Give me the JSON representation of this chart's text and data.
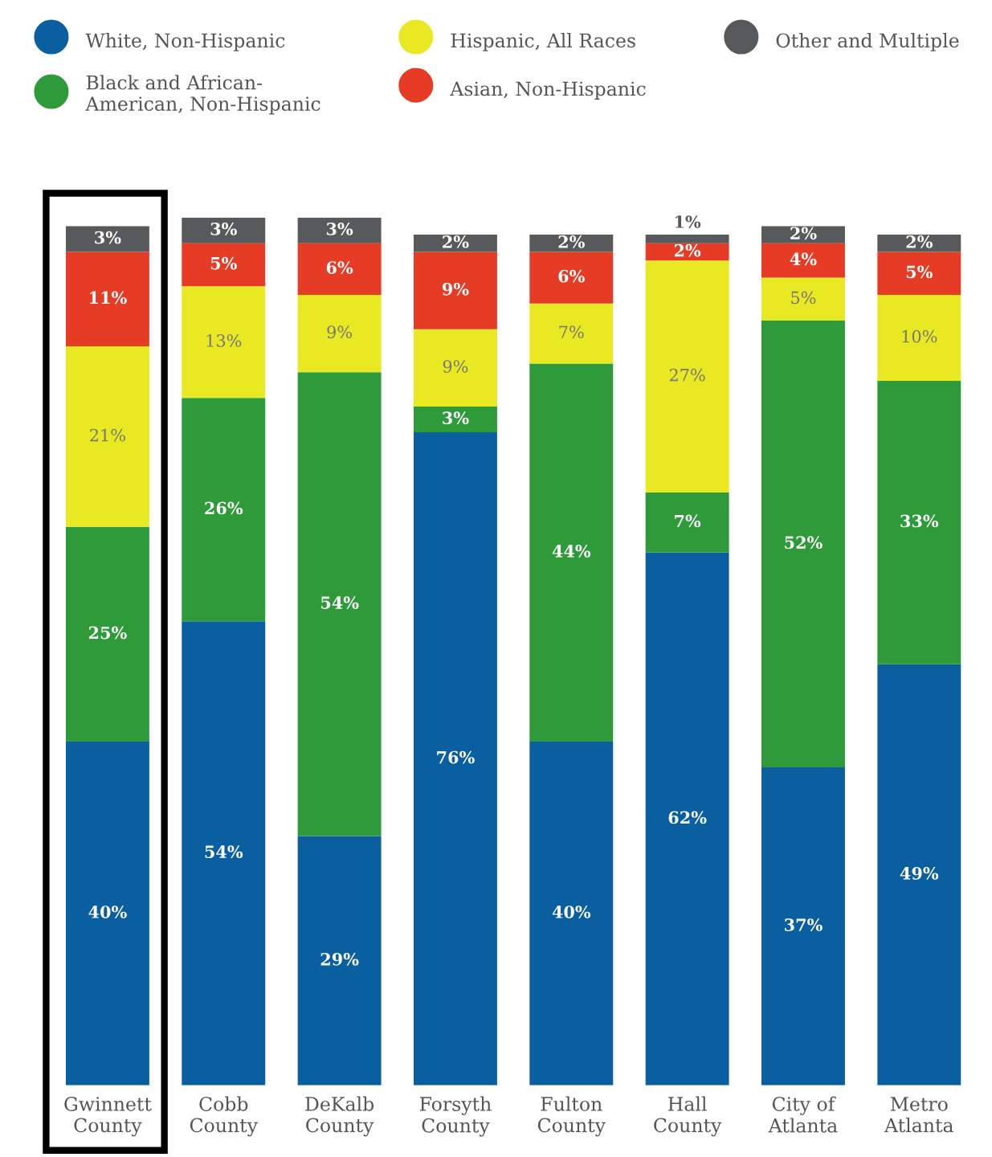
{
  "chart_data": {
    "type": "bar",
    "stacked": true,
    "legend": "top",
    "grid": false,
    "marker": "circle",
    "categories": [
      "Gwinnett\nCounty",
      "Cobb\nCounty",
      "DeKalb\nCounty",
      "Forsyth\nCounty",
      "Fulton\nCounty",
      "Hall\nCounty",
      "City of\nAtlanta",
      "Metro\nAtlanta"
    ],
    "series": [
      {
        "name": "White, Non-Hispanic",
        "color": "#0a5fa0",
        "values": [
          40,
          54,
          29,
          76,
          40,
          62,
          37,
          49
        ],
        "value_labels": [
          "40%",
          "54%",
          "29%",
          "76%",
          "40%",
          "62%",
          "37%",
          "49%"
        ]
      },
      {
        "name": "Black and African-\nAmerican, Non-Hispanic",
        "color": "#2e9a3a",
        "values": [
          25,
          26,
          54,
          3,
          44,
          7,
          52,
          33
        ],
        "value_labels": [
          "25%",
          "26%",
          "54%",
          "3%",
          "44%",
          "7%",
          "52%",
          "33%"
        ]
      },
      {
        "name": "Hispanic, All Races",
        "color": "#e8e823",
        "values": [
          21,
          13,
          9,
          9,
          7,
          27,
          5,
          10
        ],
        "value_labels": [
          "21%",
          "13%",
          "9%",
          "9%",
          "7%",
          "27%",
          "5%",
          "10%"
        ]
      },
      {
        "name": "Asian, Non-Hispanic",
        "color": "#e63c25",
        "values": [
          11,
          5,
          6,
          9,
          6,
          2,
          4,
          5
        ],
        "value_labels": [
          "11%",
          "5%",
          "6%",
          "9%",
          "6%",
          "2%",
          "4%",
          "5%"
        ]
      },
      {
        "name": "Other and Multiple",
        "color": "#58595b",
        "values": [
          3,
          3,
          3,
          2,
          2,
          1,
          2,
          2
        ],
        "value_labels": [
          "3%",
          "3%",
          "3%",
          "2%",
          "2%",
          "1%",
          "2%",
          "2%"
        ]
      }
    ]
  }
}
